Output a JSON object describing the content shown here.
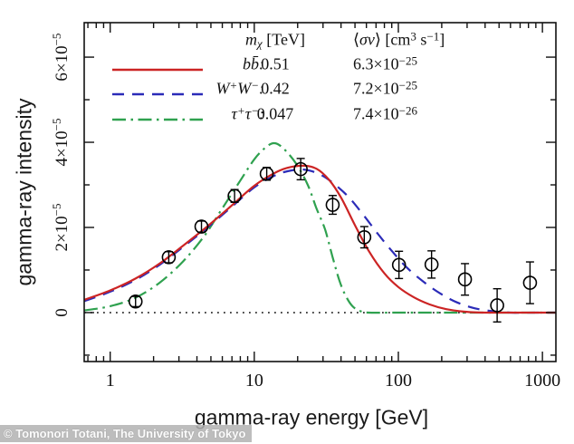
{
  "watermark": {
    "text": "© Tomonori Totani, The University of Tokyo"
  },
  "legend": {
    "header": {
      "mass": "<i>m</i><sub><i>χ</i></sub> [TeV]",
      "sigma": "⟨<i>σv</i>⟩ [cm<sup>3</sup> s<sup>−1</sup>]"
    },
    "rows": [
      {
        "series": "bbbar",
        "channel": "bb̄:",
        "mass": "0.51",
        "sigma": "6.3×10<sup>−25</sup>"
      },
      {
        "series": "ww",
        "channel": "W<sup>+</sup>W<sup>−</sup>:",
        "mass": "0.42",
        "sigma": "7.2×10<sup>−25</sup>"
      },
      {
        "series": "tautau",
        "channel": "τ<sup>+</sup>τ<sup>−</sup>:",
        "mass": "0.047",
        "sigma": "7.4×10<sup>−26</sup>"
      }
    ]
  },
  "chart_data": {
    "type": "line+scatter",
    "title": "",
    "xlabel": "gamma-ray energy [GeV]",
    "ylabel": "gamma-ray intensity",
    "x_scale": "log",
    "x_range": [
      0.66,
      1240
    ],
    "y_units": "intensity in units of 1e-5",
    "y_range": [
      -1.15,
      6.81
    ],
    "grid": false,
    "x_ticks": [
      {
        "v": 1,
        "label": "1"
      },
      {
        "v": 10,
        "label": "10"
      },
      {
        "v": 100,
        "label": "100"
      },
      {
        "v": 1000,
        "label": "1000"
      }
    ],
    "y_ticks": [
      {
        "v": 0,
        "base": "0",
        "exp": ""
      },
      {
        "v": 2,
        "base": "2×10",
        "exp": "−5"
      },
      {
        "v": 4,
        "base": "4×10",
        "exp": "−5"
      },
      {
        "v": 6,
        "base": "6×10",
        "exp": "−5"
      }
    ],
    "y_minor_ticks": [
      -1,
      1,
      3,
      5
    ],
    "zero_line": {
      "y": 0,
      "style": "dotted",
      "color": "#111111"
    },
    "series": [
      {
        "name": "tautau",
        "label": "τ+τ−",
        "color": "#2fa14f",
        "dash": "dashdot",
        "points": [
          [
            0.66,
            0.05
          ],
          [
            1,
            0.15
          ],
          [
            1.5,
            0.35
          ],
          [
            2.2,
            0.7
          ],
          [
            3.2,
            1.2
          ],
          [
            4.5,
            1.8
          ],
          [
            6,
            2.45
          ],
          [
            8,
            3.1
          ],
          [
            10,
            3.6
          ],
          [
            12,
            3.88
          ],
          [
            13.8,
            3.98
          ],
          [
            16,
            3.85
          ],
          [
            19.5,
            3.5
          ],
          [
            23.5,
            3.0
          ],
          [
            27,
            2.45
          ],
          [
            31,
            1.95
          ],
          [
            35,
            1.3
          ],
          [
            39,
            0.75
          ],
          [
            43,
            0.4
          ],
          [
            48,
            0.15
          ],
          [
            54,
            0.04
          ],
          [
            62,
            0.0
          ],
          [
            100,
            0.0
          ],
          [
            300,
            0.0
          ],
          [
            700,
            0.0
          ],
          [
            1240,
            0.0
          ]
        ]
      },
      {
        "name": "ww",
        "label": "W+W−",
        "color": "#2b2bb8",
        "dash": "dashed",
        "points": [
          [
            0.66,
            0.27
          ],
          [
            1,
            0.49
          ],
          [
            1.5,
            0.77
          ],
          [
            2.2,
            1.12
          ],
          [
            3.2,
            1.54
          ],
          [
            4.7,
            1.99
          ],
          [
            7,
            2.49
          ],
          [
            10,
            2.94
          ],
          [
            13.5,
            3.2
          ],
          [
            17,
            3.32
          ],
          [
            22,
            3.36
          ],
          [
            28,
            3.26
          ],
          [
            35,
            3.05
          ],
          [
            45,
            2.72
          ],
          [
            57,
            2.3
          ],
          [
            72,
            1.85
          ],
          [
            90,
            1.45
          ],
          [
            115,
            1.05
          ],
          [
            150,
            0.72
          ],
          [
            195,
            0.45
          ],
          [
            255,
            0.24
          ],
          [
            340,
            0.1
          ],
          [
            460,
            0.03
          ],
          [
            600,
            0.0
          ],
          [
            900,
            0.0
          ],
          [
            1240,
            0.0
          ]
        ]
      },
      {
        "name": "bbbar",
        "label": "bb̄",
        "color": "#cc2424",
        "dash": "solid",
        "points": [
          [
            0.66,
            0.3
          ],
          [
            1,
            0.52
          ],
          [
            1.5,
            0.8
          ],
          [
            2.2,
            1.15
          ],
          [
            3.2,
            1.57
          ],
          [
            4.7,
            2.02
          ],
          [
            7,
            2.52
          ],
          [
            10,
            2.98
          ],
          [
            13.5,
            3.26
          ],
          [
            17,
            3.4
          ],
          [
            22,
            3.45
          ],
          [
            27,
            3.38
          ],
          [
            33,
            3.12
          ],
          [
            40,
            2.7
          ],
          [
            50,
            2.05
          ],
          [
            63,
            1.42
          ],
          [
            80,
            0.92
          ],
          [
            100,
            0.6
          ],
          [
            128,
            0.36
          ],
          [
            165,
            0.19
          ],
          [
            215,
            0.08
          ],
          [
            290,
            0.02
          ],
          [
            400,
            0.0
          ],
          [
            700,
            0.0
          ],
          [
            1240,
            0.0
          ]
        ]
      }
    ],
    "data_points": {
      "marker": "open-circle",
      "color": "#000000",
      "values": [
        [
          1.5,
          0.26,
          0.12
        ],
        [
          2.55,
          1.3,
          0.13
        ],
        [
          4.3,
          2.02,
          0.13
        ],
        [
          7.3,
          2.74,
          0.15
        ],
        [
          12.2,
          3.26,
          0.15
        ],
        [
          21,
          3.37,
          0.25
        ],
        [
          35,
          2.53,
          0.22
        ],
        [
          58,
          1.77,
          0.25
        ],
        [
          101,
          1.12,
          0.32
        ],
        [
          170,
          1.13,
          0.32
        ],
        [
          290,
          0.78,
          0.37
        ],
        [
          485,
          0.17,
          0.39
        ],
        [
          820,
          0.7,
          0.49
        ]
      ]
    }
  }
}
